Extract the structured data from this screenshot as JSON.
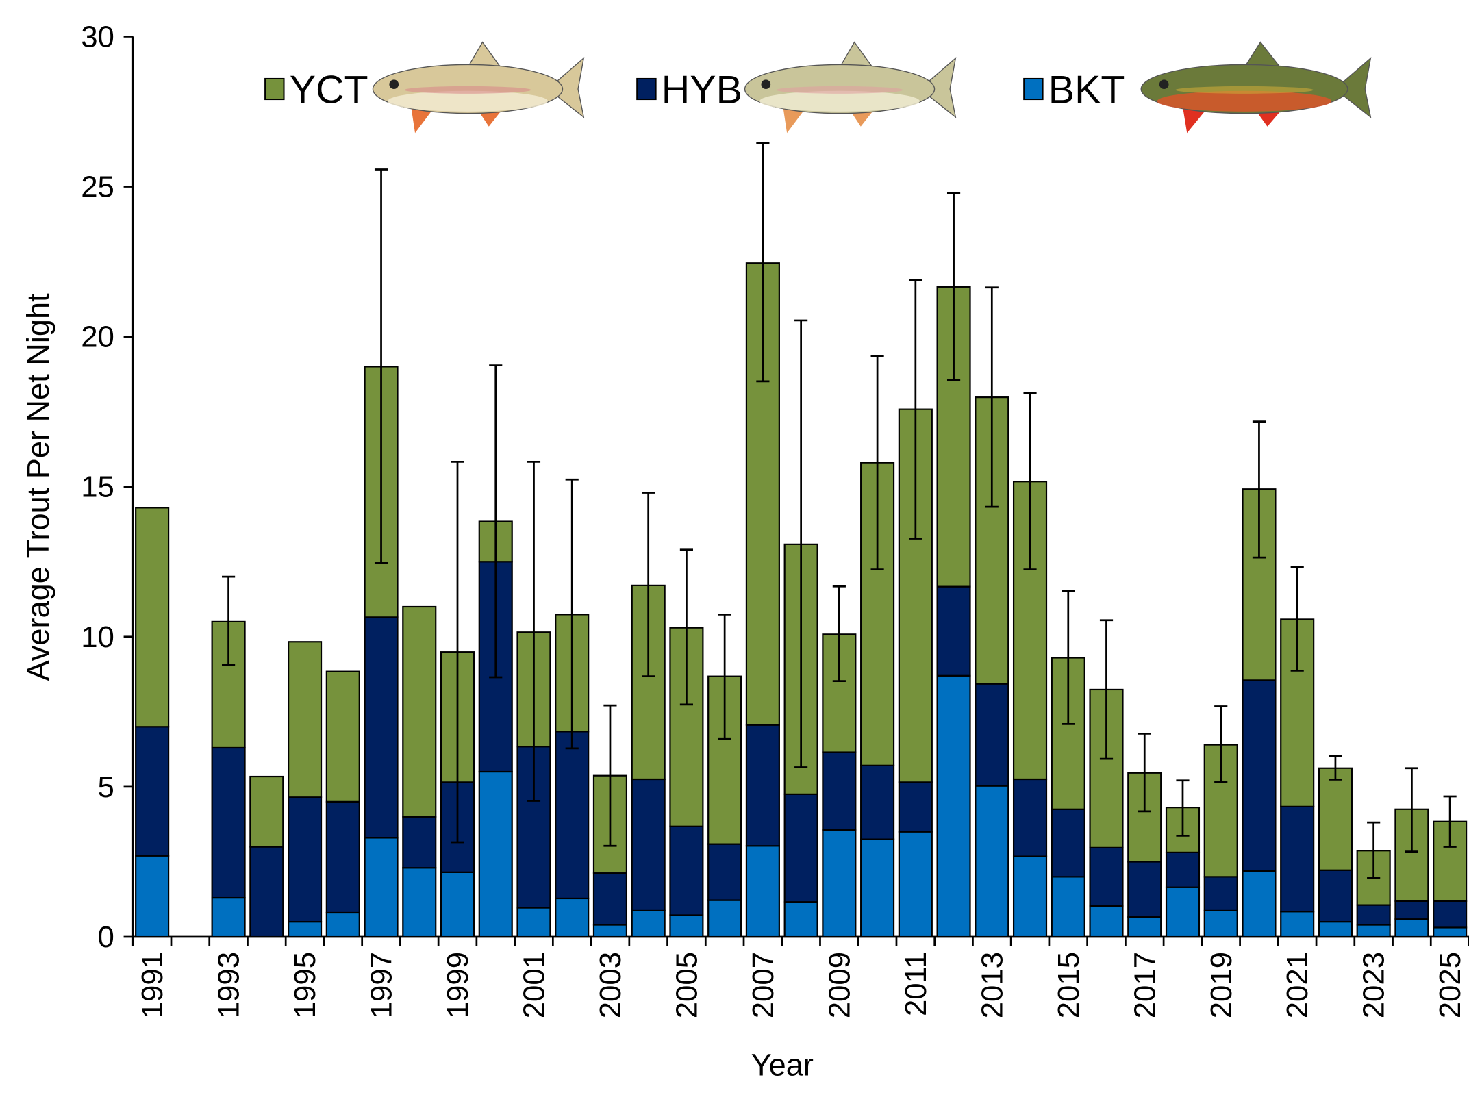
{
  "chart_data": {
    "type": "bar",
    "stacked": true,
    "title": "",
    "xlabel": "Year",
    "ylabel": "Average Trout Per Net Night",
    "ylim": [
      0,
      30
    ],
    "yticks": [
      0,
      5,
      10,
      15,
      20,
      25,
      30
    ],
    "grid": false,
    "legend_position": "top",
    "categories": [
      1991,
      1992,
      1993,
      1994,
      1995,
      1996,
      1997,
      1998,
      1999,
      2000,
      2001,
      2002,
      2003,
      2004,
      2005,
      2006,
      2007,
      2008,
      2009,
      2010,
      2011,
      2012,
      2013,
      2014,
      2015,
      2016,
      2017,
      2018,
      2019,
      2020,
      2021,
      2022,
      2023,
      2024,
      2025
    ],
    "xtick_labels": [
      "1991",
      "1993",
      "1995",
      "1997",
      "1999",
      "2001",
      "2003",
      "2005",
      "2007",
      "2009",
      "2011",
      "2013",
      "2015",
      "2017",
      "2019",
      "2021",
      "2023",
      "2025"
    ],
    "series": [
      {
        "name": "BKT",
        "color": "#0070c0",
        "values": [
          2.7,
          null,
          1.3,
          0,
          0.5,
          0.8,
          3.3,
          2.3,
          2.15,
          5.5,
          0.97,
          1.28,
          0.4,
          0.87,
          0.72,
          1.22,
          3.03,
          1.16,
          3.56,
          3.25,
          3.5,
          8.7,
          5.03,
          2.68,
          2.0,
          1.03,
          0.66,
          1.65,
          0.87,
          2.19,
          0.84,
          0.5,
          0.4,
          0.59,
          0.31
        ]
      },
      {
        "name": "HYB",
        "color": "#002060",
        "values": [
          4.3,
          null,
          5.0,
          3.0,
          4.15,
          3.7,
          7.35,
          1.7,
          3.0,
          7.0,
          5.37,
          5.56,
          1.72,
          4.38,
          2.96,
          1.87,
          4.03,
          3.59,
          2.59,
          2.46,
          1.65,
          2.97,
          3.4,
          2.57,
          2.25,
          1.94,
          1.84,
          1.16,
          1.13,
          6.36,
          3.5,
          1.72,
          0.66,
          0.6,
          0.88
        ]
      },
      {
        "name": "YCT",
        "color": "#76923c",
        "values": [
          7.3,
          null,
          4.2,
          2.34,
          5.18,
          4.34,
          8.35,
          7.0,
          4.34,
          1.34,
          3.81,
          3.9,
          3.25,
          6.46,
          6.62,
          5.59,
          15.39,
          8.33,
          3.93,
          10.09,
          12.43,
          9.99,
          9.55,
          9.92,
          5.05,
          5.27,
          2.96,
          1.5,
          4.4,
          6.37,
          6.24,
          3.4,
          1.81,
          3.06,
          2.65
        ]
      }
    ],
    "error_bars": {
      "upper": [
        null,
        null,
        12.0,
        null,
        null,
        null,
        25.57,
        null,
        15.83,
        19.04,
        15.83,
        15.24,
        7.71,
        14.8,
        12.9,
        10.74,
        26.44,
        20.54,
        11.68,
        19.36,
        21.89,
        24.79,
        21.64,
        18.11,
        11.52,
        10.55,
        6.77,
        5.21,
        7.68,
        17.17,
        12.33,
        6.03,
        3.81,
        5.62,
        4.68
      ],
      "lower": [
        null,
        null,
        9.06,
        null,
        null,
        null,
        12.46,
        null,
        3.15,
        8.65,
        4.53,
        6.28,
        3.03,
        8.68,
        7.74,
        6.59,
        18.51,
        5.65,
        8.52,
        12.24,
        13.27,
        18.55,
        14.33,
        12.24,
        7.09,
        5.93,
        4.18,
        3.37,
        5.15,
        12.64,
        8.87,
        5.24,
        1.97,
        2.84,
        3.0
      ]
    },
    "legend": [
      {
        "label": "YCT",
        "color": "#76923c",
        "icon": "yellowstone-cutthroat-trout-illustration"
      },
      {
        "label": "HYB",
        "color": "#002060",
        "icon": "hybrid-trout-illustration"
      },
      {
        "label": "BKT",
        "color": "#0070c0",
        "icon": "brook-trout-illustration"
      }
    ]
  }
}
